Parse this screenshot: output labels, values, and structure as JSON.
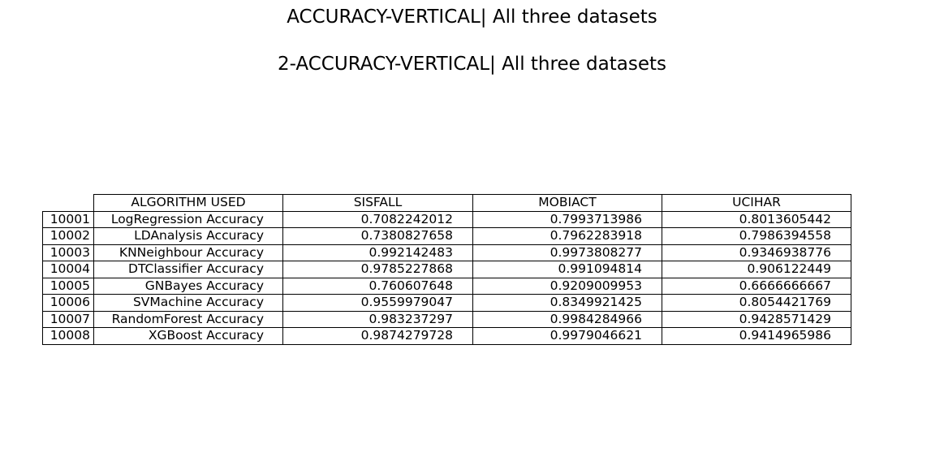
{
  "chart_data": {
    "type": "table",
    "title": "ACCURACY-VERTICAL| All three datasets",
    "subtitle": "2-ACCURACY-VERTICAL| All three datasets",
    "columns": [
      "ALGORITHM USED",
      "SISFALL",
      "MOBIACT",
      "UCIHAR"
    ],
    "rows": [
      {
        "index": "10001",
        "cells": [
          "LogRegression Accuracy",
          "0.7082242012",
          "0.7993713986",
          "0.8013605442"
        ]
      },
      {
        "index": "10002",
        "cells": [
          "LDAnalysis Accuracy",
          "0.7380827658",
          "0.7962283918",
          "0.7986394558"
        ]
      },
      {
        "index": "10003",
        "cells": [
          "KNNeighbour Accuracy",
          "0.992142483",
          "0.9973808277",
          "0.9346938776"
        ]
      },
      {
        "index": "10004",
        "cells": [
          "DTClassifier Accuracy",
          "0.9785227868",
          "0.991094814",
          "0.906122449"
        ]
      },
      {
        "index": "10005",
        "cells": [
          "GNBayes Accuracy",
          "0.760607648",
          "0.9209009953",
          "0.6666666667"
        ]
      },
      {
        "index": "10006",
        "cells": [
          "SVMachine Accuracy",
          "0.9559979047",
          "0.8349921425",
          "0.8054421769"
        ]
      },
      {
        "index": "10007",
        "cells": [
          "RandomForest Accuracy",
          "0.983237297",
          "0.9984284966",
          "0.9428571429"
        ]
      },
      {
        "index": "10008",
        "cells": [
          "XGBoost Accuracy",
          "0.9874279728",
          "0.9979046621",
          "0.9414965986"
        ]
      }
    ]
  }
}
